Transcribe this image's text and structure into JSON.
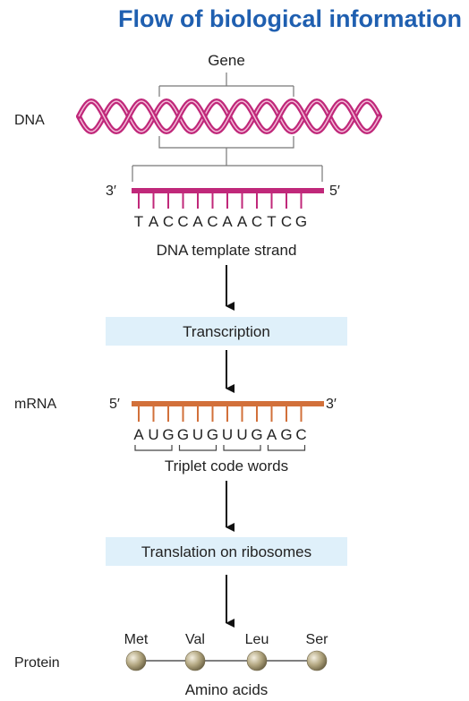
{
  "title": "Flow of biological information",
  "gene_label": "Gene",
  "dna_label": "DNA",
  "dna_strand": {
    "left_end": "3′",
    "right_end": "5′",
    "sequence": [
      "T",
      "A",
      "C",
      "C",
      "A",
      "C",
      "A",
      "A",
      "C",
      "T",
      "C",
      "G"
    ],
    "caption": "DNA template strand",
    "color": "#c0287a"
  },
  "transcription_label": "Transcription",
  "mrna_label": "mRNA",
  "mrna_strand": {
    "left_end": "5′",
    "right_end": "3′",
    "sequence": [
      "A",
      "U",
      "G",
      "G",
      "U",
      "G",
      "U",
      "U",
      "G",
      "A",
      "G",
      "C"
    ],
    "caption": "Triplet code words",
    "color": "#d2703a"
  },
  "translation_label": "Translation on ribosomes",
  "protein_label": "Protein",
  "amino_acids": [
    "Met",
    "Val",
    "Leu",
    "Ser"
  ],
  "amino_caption": "Amino acids",
  "colors": {
    "title": "#1f5fb0",
    "helix": "#c0287a",
    "box": "#dff0fa",
    "bead": "#a79a78"
  }
}
